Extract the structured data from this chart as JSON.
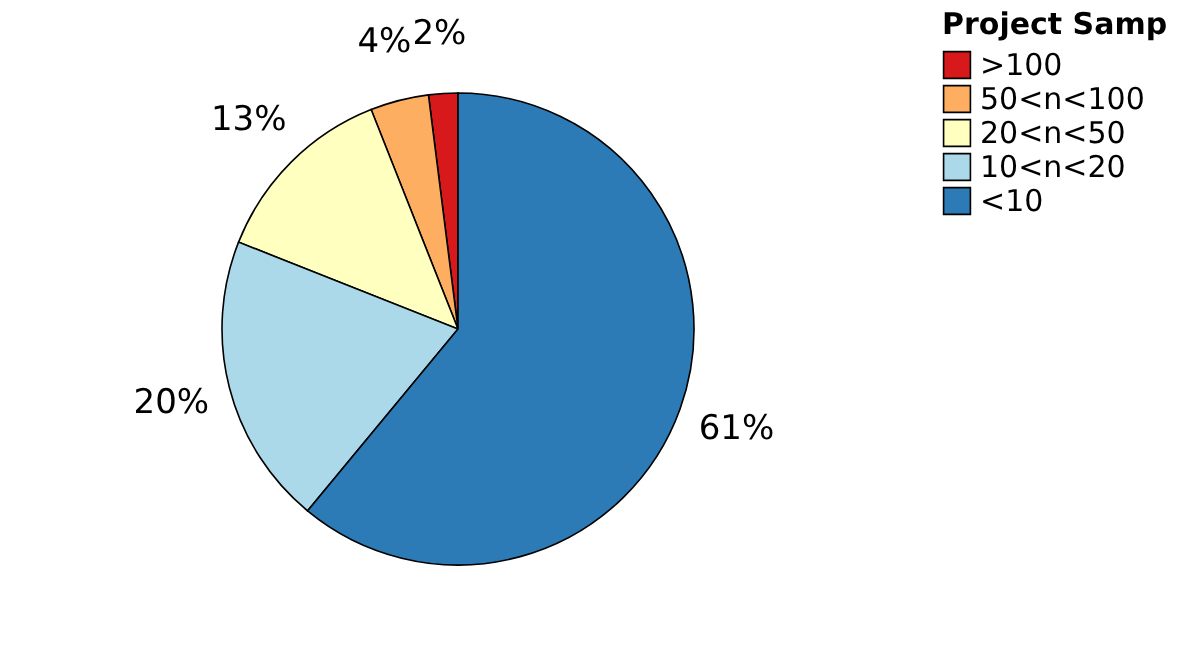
{
  "chart_data": {
    "type": "pie",
    "legend_title": "Project Samp",
    "legend": "right",
    "categories": [
      ">100",
      "50<n<100",
      "20<n<50",
      "10<n<20",
      "<10"
    ],
    "values": [
      2,
      4,
      13,
      20,
      61
    ],
    "value_labels": [
      "2%",
      "4%",
      "13%",
      "20%",
      "61%"
    ],
    "colors": [
      "#d7191c",
      "#fdae61",
      "#ffffbf",
      "#abd9e9",
      "#2c7bb6"
    ]
  }
}
